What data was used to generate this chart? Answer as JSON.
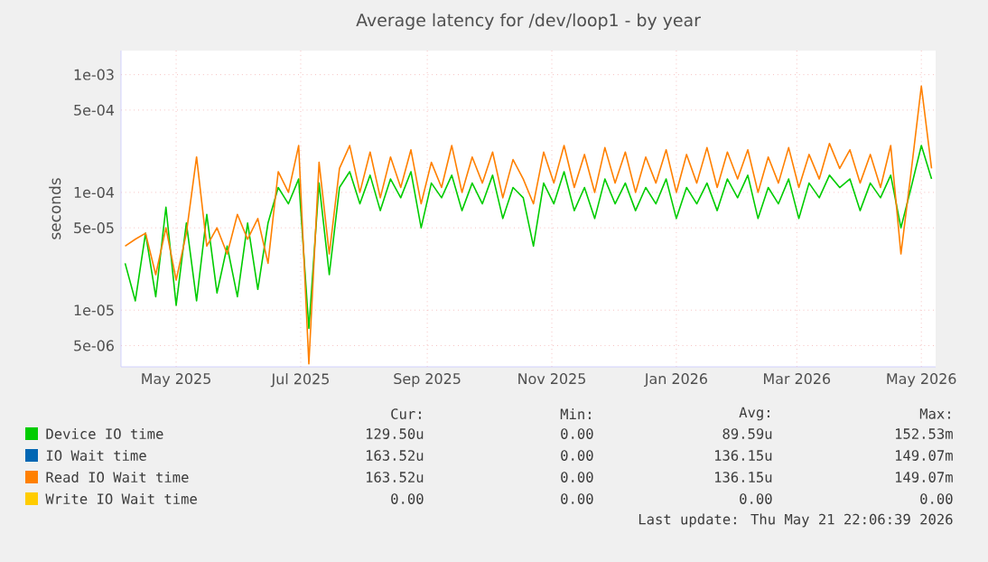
{
  "chart_data": {
    "type": "line",
    "title": "Average latency for /dev/loop1 - by year",
    "ylabel": "seconds",
    "log": "y",
    "grid": true,
    "legend": "bottom",
    "xlim": [
      "2025-04-18",
      "2026-05-22"
    ],
    "ylim": [
      3.3e-06,
      0.0016
    ],
    "xticks": [
      {
        "value": "2025-05-15",
        "label": "May 2025"
      },
      {
        "value": "2025-07-15",
        "label": "Jul 2025"
      },
      {
        "value": "2025-09-15",
        "label": "Sep 2025"
      },
      {
        "value": "2025-11-15",
        "label": "Nov 2025"
      },
      {
        "value": "2026-01-15",
        "label": "Jan 2026"
      },
      {
        "value": "2026-03-15",
        "label": "Mar 2026"
      },
      {
        "value": "2026-05-15",
        "label": "May 2026"
      }
    ],
    "yticks": [
      {
        "value": 5e-06,
        "label": "5e-06"
      },
      {
        "value": 1e-05,
        "label": "1e-05"
      },
      {
        "value": 5e-05,
        "label": "5e-05"
      },
      {
        "value": 0.0001,
        "label": "1e-04"
      },
      {
        "value": 0.0005,
        "label": "5e-04"
      },
      {
        "value": 0.001,
        "label": "1e-03"
      }
    ],
    "x": [
      "2025-04-20",
      "2025-04-25",
      "2025-04-30",
      "2025-05-05",
      "2025-05-10",
      "2025-05-15",
      "2025-05-20",
      "2025-05-25",
      "2025-05-30",
      "2025-06-04",
      "2025-06-09",
      "2025-06-14",
      "2025-06-19",
      "2025-06-24",
      "2025-06-29",
      "2025-07-04",
      "2025-07-09",
      "2025-07-14",
      "2025-07-19",
      "2025-07-24",
      "2025-07-29",
      "2025-08-03",
      "2025-08-08",
      "2025-08-13",
      "2025-08-18",
      "2025-08-23",
      "2025-08-28",
      "2025-09-02",
      "2025-09-07",
      "2025-09-12",
      "2025-09-17",
      "2025-09-22",
      "2025-09-27",
      "2025-10-02",
      "2025-10-07",
      "2025-10-12",
      "2025-10-17",
      "2025-10-22",
      "2025-10-27",
      "2025-11-01",
      "2025-11-06",
      "2025-11-11",
      "2025-11-16",
      "2025-11-21",
      "2025-11-26",
      "2025-12-01",
      "2025-12-06",
      "2025-12-11",
      "2025-12-16",
      "2025-12-21",
      "2025-12-26",
      "2025-12-31",
      "2026-01-05",
      "2026-01-10",
      "2026-01-15",
      "2026-01-20",
      "2026-01-25",
      "2026-01-30",
      "2026-02-04",
      "2026-02-09",
      "2026-02-14",
      "2026-02-19",
      "2026-02-24",
      "2026-03-01",
      "2026-03-06",
      "2026-03-11",
      "2026-03-16",
      "2026-03-21",
      "2026-03-26",
      "2026-03-31",
      "2026-04-05",
      "2026-04-10",
      "2026-04-15",
      "2026-04-20",
      "2026-04-25",
      "2026-04-30",
      "2026-05-05",
      "2026-05-10",
      "2026-05-15",
      "2026-05-20"
    ],
    "series": [
      {
        "name": "Device IO time",
        "color": "#00cc00",
        "values": [
          2.5e-05,
          1.2e-05,
          4.5e-05,
          1.3e-05,
          7.5e-05,
          1.1e-05,
          5.5e-05,
          1.2e-05,
          6.5e-05,
          1.4e-05,
          3.5e-05,
          1.3e-05,
          5.5e-05,
          1.5e-05,
          5.5e-05,
          0.00011,
          8e-05,
          0.00013,
          7e-06,
          0.00012,
          2e-05,
          0.00011,
          0.00015,
          8e-05,
          0.00014,
          7e-05,
          0.00013,
          9e-05,
          0.00015,
          5e-05,
          0.00012,
          9e-05,
          0.00014,
          7e-05,
          0.00012,
          8e-05,
          0.00014,
          6e-05,
          0.00011,
          9e-05,
          3.5e-05,
          0.00012,
          8e-05,
          0.00015,
          7e-05,
          0.00011,
          6e-05,
          0.00013,
          8e-05,
          0.00012,
          7e-05,
          0.00011,
          8e-05,
          0.00013,
          6e-05,
          0.00011,
          8e-05,
          0.00012,
          7e-05,
          0.00013,
          9e-05,
          0.00014,
          6e-05,
          0.00011,
          8e-05,
          0.00013,
          6e-05,
          0.00012,
          9e-05,
          0.00014,
          0.00011,
          0.00013,
          7e-05,
          0.00012,
          9e-05,
          0.00014,
          5e-05,
          0.00011,
          0.00025,
          0.00013
        ]
      },
      {
        "name": "IO Wait time",
        "color": "#0066b3",
        "values": [
          null,
          null,
          null,
          null,
          null,
          null,
          null,
          null,
          null,
          null,
          null,
          null,
          null,
          null,
          null,
          null,
          null,
          null,
          null,
          null,
          null,
          null,
          null,
          null,
          null,
          null,
          null,
          null,
          null,
          null,
          null,
          null,
          null,
          null,
          null,
          null,
          null,
          null,
          null,
          null,
          null,
          null,
          null,
          null,
          null,
          null,
          null,
          null,
          null,
          null,
          null,
          null,
          null,
          null,
          null,
          null,
          null,
          null,
          null,
          null,
          null,
          null,
          null,
          null,
          null,
          null,
          null,
          null,
          null,
          null,
          null,
          null,
          null,
          null,
          null,
          null,
          null,
          null,
          null,
          null
        ]
      },
      {
        "name": "Read IO Wait time",
        "color": "#ff8000",
        "values": [
          3.5e-05,
          4e-05,
          4.5e-05,
          2e-05,
          5e-05,
          1.8e-05,
          4.5e-05,
          0.0002,
          3.5e-05,
          5e-05,
          3e-05,
          6.5e-05,
          4e-05,
          6e-05,
          2.5e-05,
          0.00015,
          0.0001,
          0.00025,
          3.5e-06,
          0.00018,
          3e-05,
          0.00016,
          0.00025,
          0.0001,
          0.00022,
          9e-05,
          0.0002,
          0.00011,
          0.00023,
          8e-05,
          0.00018,
          0.00011,
          0.00025,
          0.0001,
          0.0002,
          0.00012,
          0.00022,
          9e-05,
          0.00019,
          0.00013,
          8e-05,
          0.00022,
          0.00012,
          0.00025,
          0.00011,
          0.00021,
          0.0001,
          0.00024,
          0.00012,
          0.00022,
          0.0001,
          0.0002,
          0.00012,
          0.00023,
          0.0001,
          0.00021,
          0.00012,
          0.00024,
          0.00011,
          0.00022,
          0.00013,
          0.00023,
          0.0001,
          0.0002,
          0.00012,
          0.00024,
          0.00011,
          0.00021,
          0.00013,
          0.00026,
          0.00016,
          0.00023,
          0.00012,
          0.00021,
          0.00011,
          0.00025,
          3e-05,
          0.00015,
          0.0008,
          0.00016
        ]
      },
      {
        "name": "Write IO Wait time",
        "color": "#ffcc00",
        "values": [
          null,
          null,
          null,
          null,
          null,
          null,
          null,
          null,
          null,
          null,
          null,
          null,
          null,
          null,
          null,
          null,
          null,
          null,
          null,
          null,
          null,
          null,
          null,
          null,
          null,
          null,
          null,
          null,
          null,
          null,
          null,
          null,
          null,
          null,
          null,
          null,
          null,
          null,
          null,
          null,
          null,
          null,
          null,
          null,
          null,
          null,
          null,
          null,
          null,
          null,
          null,
          null,
          null,
          null,
          null,
          null,
          null,
          null,
          null,
          null,
          null,
          null,
          null,
          null,
          null,
          null,
          null,
          null,
          null,
          null,
          null,
          null,
          null,
          null,
          null,
          null,
          null,
          null,
          null,
          null
        ]
      }
    ],
    "annotations": [
      "Cur:",
      "Min:",
      "Avg:",
      "Max:",
      "129.50u",
      "0.00",
      "89.59u",
      "152.53m",
      "163.52u",
      "0.00",
      "136.15u",
      "149.07m",
      "163.52u",
      "0.00",
      "136.15u",
      "149.07m",
      "0.00",
      "0.00",
      "0.00",
      "0.00",
      "Last update: Thu May 21 22:06:39 2026"
    ]
  }
}
